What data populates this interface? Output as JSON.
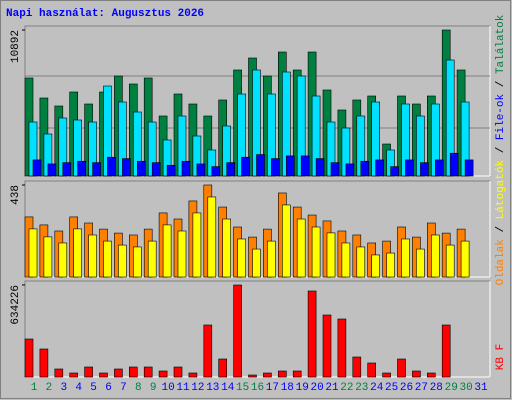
{
  "title": "Napi használat: Augusztus 2026",
  "legend_separator": "/",
  "chart_data": [
    {
      "type": "bar",
      "ylim": [
        0,
        10892
      ],
      "yticks": [
        10892
      ],
      "series": [
        {
          "name": "Találatok",
          "color": "#008040",
          "values": [
            7311,
            5819,
            5222,
            6266,
            5371,
            6266,
            7460,
            6863,
            7311,
            4476,
            6117,
            5371,
            4476,
            5670,
            7908,
            8803,
            7460,
            9250,
            7908,
            9250,
            6416,
            4924,
            5670,
            5968,
            2387,
            5968,
            5371,
            5968,
            10892,
            7908,
            0
          ]
        },
        {
          "color": "#00e0ff",
          "values": [
            4028,
            3133,
            4327,
            4178,
            4028,
            6714,
            5520,
            4774,
            4028,
            2686,
            4476,
            2984,
            1940,
            3730,
            6117,
            7908,
            6117,
            7758,
            7460,
            5968,
            4028,
            3581,
            4476,
            5520,
            1940,
            5371,
            4476,
            5371,
            8654,
            5520,
            0
          ]
        },
        {
          "name": "File-ok",
          "color": "#0000ff",
          "values": [
            1200,
            900,
            1000,
            1100,
            1000,
            1400,
            1300,
            1100,
            1000,
            800,
            1100,
            900,
            700,
            1000,
            1400,
            1600,
            1300,
            1500,
            1500,
            1300,
            1000,
            900,
            1100,
            1200,
            700,
            1200,
            1000,
            1200,
            1700,
            1200,
            0
          ]
        }
      ]
    },
    {
      "type": "bar",
      "ylim": [
        0,
        438
      ],
      "yticks": [
        438
      ],
      "series": [
        {
          "name": "Oldalak",
          "color": "#ff8000",
          "values": [
            286,
            248,
            219,
            286,
            257,
            228,
            209,
            200,
            228,
            305,
            276,
            362,
            438,
            333,
            238,
            190,
            228,
            400,
            333,
            295,
            267,
            219,
            200,
            162,
            171,
            238,
            190,
            257,
            209,
            228,
            0
          ]
        },
        {
          "name": "Látogatók",
          "color": "#ffff00",
          "values": [
            229,
            191,
            162,
            229,
            200,
            171,
            152,
            143,
            171,
            248,
            219,
            305,
            381,
            276,
            181,
            133,
            171,
            343,
            276,
            238,
            210,
            162,
            143,
            105,
            114,
            181,
            133,
            200,
            152,
            171,
            0
          ]
        }
      ]
    },
    {
      "type": "bar",
      "ylim": [
        0,
        634226
      ],
      "yticks": [
        634226
      ],
      "categories": [
        "1",
        "2",
        "3",
        "4",
        "5",
        "6",
        "7",
        "8",
        "9",
        "10",
        "11",
        "12",
        "13",
        "14",
        "15",
        "16",
        "17",
        "18",
        "19",
        "20",
        "21",
        "22",
        "23",
        "24",
        "25",
        "26",
        "27",
        "28",
        "29",
        "30",
        "31"
      ],
      "category_colors": [
        "#008040",
        "#008040",
        "#0000ff",
        "#0000ff",
        "#0000ff",
        "#0000ff",
        "#0000ff",
        "#008040",
        "#008040",
        "#0000ff",
        "#0000ff",
        "#0000ff",
        "#0000ff",
        "#0000ff",
        "#008040",
        "#008040",
        "#0000ff",
        "#0000ff",
        "#0000ff",
        "#0000ff",
        "#0000ff",
        "#008040",
        "#008040",
        "#0000ff",
        "#0000ff",
        "#0000ff",
        "#0000ff",
        "#0000ff",
        "#008040",
        "#008040",
        "#0000ff"
      ],
      "series": [
        {
          "name": "KB F",
          "color": "#ff0000",
          "values": [
            261972,
            193032,
            55152,
            27576,
            68940,
            27576,
            55152,
            68940,
            68940,
            41364,
            68940,
            27576,
            358488,
            124092,
            634226,
            13788,
            27576,
            41364,
            41364,
            592884,
            427428,
            399852,
            137880,
            96516,
            27576,
            124092,
            41364,
            27576,
            358488,
            0,
            0
          ]
        }
      ]
    }
  ]
}
